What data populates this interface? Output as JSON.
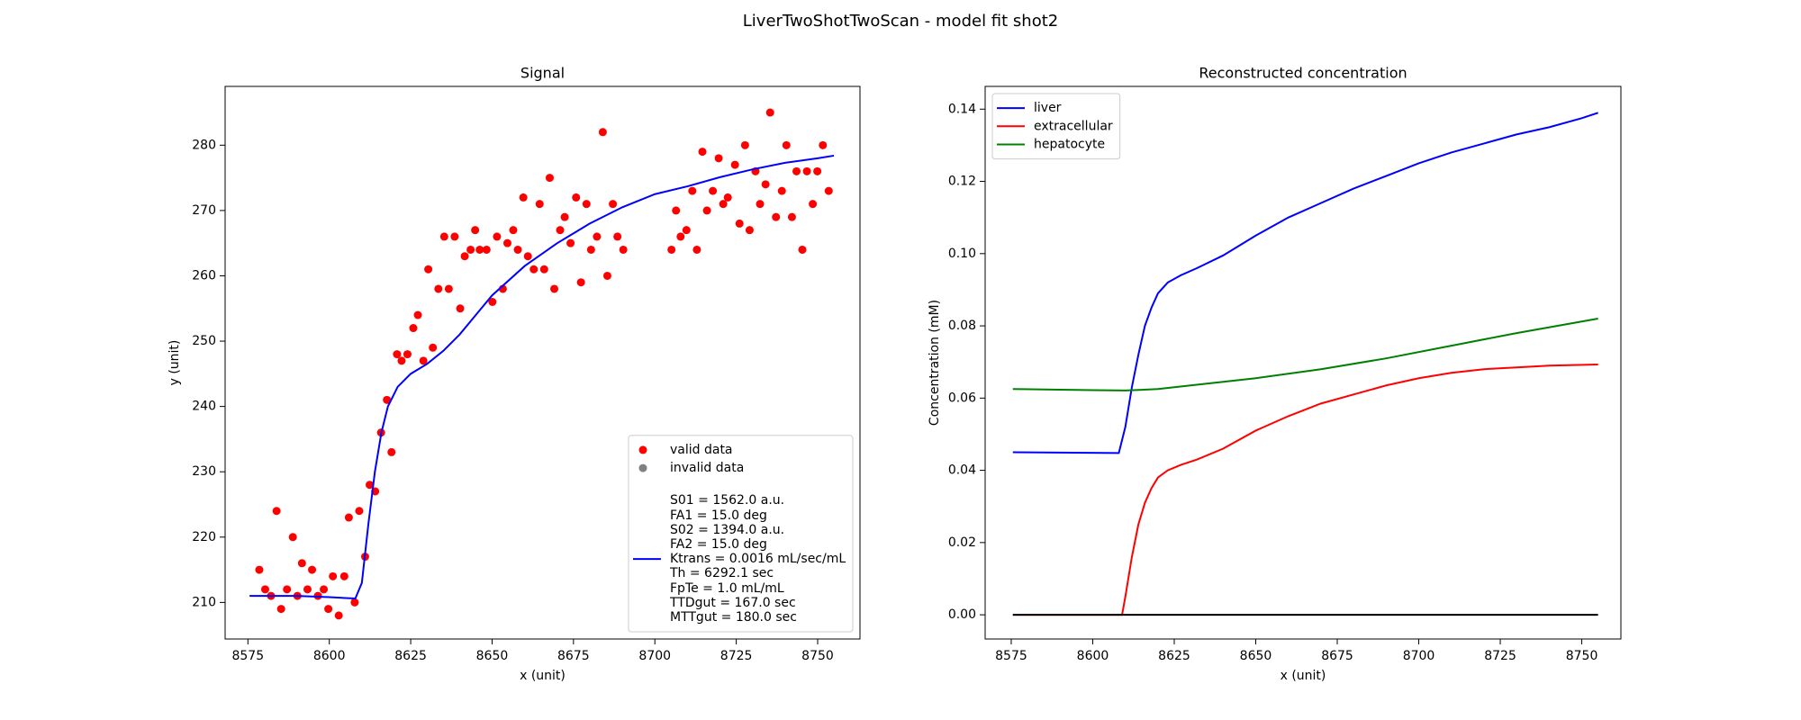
{
  "title": "LiverTwoShotTwoScan - model fit shot2",
  "chart_data": [
    {
      "type": "scatter",
      "title": "Signal",
      "xlabel": "x (unit)",
      "ylabel": "y (unit)",
      "xlim": [
        8568,
        8763
      ],
      "ylim": [
        204.4,
        289
      ],
      "xticks": [
        8575,
        8600,
        8625,
        8650,
        8675,
        8700,
        8725,
        8750
      ],
      "yticks": [
        210,
        220,
        230,
        240,
        250,
        260,
        270,
        280
      ],
      "legend": "lower right",
      "series": [
        {
          "name": "valid data",
          "type": "scatter",
          "color": "#ff0000",
          "x": [
            8578.5,
            8580.3,
            8582.1,
            8583.8,
            8585.2,
            8587.0,
            8588.8,
            8590.2,
            8591.6,
            8593.3,
            8594.7,
            8596.5,
            8598.3,
            8599.7,
            8601.1,
            8602.9,
            8604.6,
            8606.0,
            8607.8,
            8609.2,
            8611.0,
            8612.4,
            8614.1,
            8615.9,
            8617.7,
            8619.1,
            8620.8,
            8622.2,
            8624.0,
            8625.8,
            8627.2,
            8628.9,
            8630.4,
            8631.8,
            8633.5,
            8635.3,
            8636.7,
            8638.5,
            8640.2,
            8641.6,
            8643.4,
            8644.8,
            8646.2,
            8648.3,
            8650.1,
            8651.5,
            8653.3,
            8654.7,
            8656.5,
            8657.9,
            8659.6,
            8661.0,
            8662.8,
            8664.6,
            8666.0,
            8667.7,
            8669.1,
            8670.9,
            8672.3,
            8674.1,
            8675.8,
            8677.3,
            8679.0,
            8680.4,
            8682.2,
            8684.0,
            8685.4,
            8687.1,
            8688.5,
            8690.3,
            8705.1,
            8706.5,
            8707.9,
            8709.7,
            8711.5,
            8712.9,
            8714.6,
            8716.0,
            8717.8,
            8719.6,
            8721.0,
            8722.4,
            8724.6,
            8726.0,
            8727.7,
            8729.1,
            8730.9,
            8732.3,
            8734.0,
            8735.4,
            8737.2,
            8739.0,
            8740.4,
            8742.1,
            8743.5,
            8745.3,
            8746.7,
            8748.5,
            8749.9,
            8751.6,
            8753.4
          ],
          "values": [
            215,
            212,
            211,
            224,
            209,
            212,
            220,
            211,
            216,
            212,
            215,
            211,
            212,
            209,
            214,
            208,
            214,
            223,
            210,
            224,
            217,
            228,
            227,
            236,
            241,
            233,
            248,
            247,
            248,
            252,
            254,
            247,
            261,
            249,
            258,
            266,
            258,
            266,
            255,
            263,
            264,
            267,
            264,
            264,
            256,
            266,
            258,
            265,
            267,
            264,
            272,
            263,
            261,
            271,
            261,
            275,
            258,
            267,
            269,
            265,
            272,
            259,
            271,
            264,
            266,
            282,
            260,
            271,
            266,
            264,
            264,
            270,
            266,
            267,
            273,
            264,
            279,
            270,
            273,
            278,
            271,
            272,
            277,
            268,
            280,
            267,
            276,
            271,
            274,
            285,
            269,
            273,
            280,
            269,
            276,
            264,
            276,
            271,
            276,
            280,
            273
          ]
        },
        {
          "name": "invalid data",
          "type": "scatter",
          "color": "#808080",
          "x": [],
          "values": []
        },
        {
          "name": "S01 = 1562.0 a.u.\nFA1 = 15.0 deg\nS02 = 1394.0 a.u.\nFA2 = 15.0 deg\nKtrans = 0.0016 mL/sec/mL\nTh = 6292.1 sec\nFpTe = 1.0 mL/mL\nTTDgut = 167.0 sec\nMTTgut = 180.0 sec",
          "type": "line",
          "color": "#0000ff",
          "x": [
            8575.5,
            8590,
            8600,
            8608,
            8610,
            8612,
            8614,
            8616,
            8618,
            8621,
            8625,
            8630,
            8635,
            8640,
            8645,
            8650,
            8660,
            8670,
            8680,
            8690,
            8700,
            8710,
            8720,
            8730,
            8740,
            8750,
            8755
          ],
          "values": [
            211,
            211,
            210.8,
            210.6,
            213,
            222,
            230,
            236,
            240,
            243,
            245,
            246.5,
            248.5,
            251,
            254,
            257,
            261.5,
            265,
            268,
            270.5,
            272.5,
            273.7,
            275.1,
            276.3,
            277.3,
            278.0,
            278.4
          ]
        }
      ]
    },
    {
      "type": "line",
      "title": "Reconstructed concentration",
      "xlabel": "x (unit)",
      "ylabel": "Concentration (mM)",
      "xlim": [
        8567,
        8762
      ],
      "ylim": [
        -0.0067,
        0.1463
      ],
      "xticks": [
        8575,
        8600,
        8625,
        8650,
        8675,
        8700,
        8725,
        8750
      ],
      "yticks": [
        {
          "value": 0,
          "label": "0.00"
        },
        {
          "value": 0.02,
          "label": "0.02"
        },
        {
          "value": 0.04,
          "label": "0.04"
        },
        {
          "value": 0.06,
          "label": "0.06"
        },
        {
          "value": 0.08,
          "label": "0.08"
        },
        {
          "value": 0.1,
          "label": "0.10"
        },
        {
          "value": 0.12,
          "label": "0.12"
        },
        {
          "value": 0.14,
          "label": "0.14"
        }
      ],
      "legend": "upper left",
      "series": [
        {
          "name": "liver",
          "type": "line",
          "color": "#0000ff",
          "x": [
            8575.5,
            8608,
            8610,
            8612,
            8614,
            8616,
            8618,
            8620,
            8623,
            8627,
            8632,
            8640,
            8650,
            8660,
            8670,
            8680,
            8690,
            8700,
            8710,
            8720,
            8730,
            8740,
            8750,
            8755
          ],
          "values": [
            0.045,
            0.0448,
            0.052,
            0.063,
            0.072,
            0.08,
            0.085,
            0.089,
            0.092,
            0.094,
            0.096,
            0.0995,
            0.105,
            0.11,
            0.114,
            0.118,
            0.1215,
            0.125,
            0.128,
            0.1305,
            0.133,
            0.135,
            0.1375,
            0.139
          ]
        },
        {
          "name": "extracellular",
          "type": "line",
          "color": "#ff0000",
          "x": [
            8575.5,
            8609,
            8610,
            8612,
            8614,
            8616,
            8618,
            8620,
            8623,
            8627,
            8632,
            8640,
            8650,
            8660,
            8670,
            8680,
            8690,
            8700,
            8710,
            8720,
            8730,
            8740,
            8755
          ],
          "values": [
            0,
            0,
            0.005,
            0.016,
            0.025,
            0.031,
            0.035,
            0.038,
            0.04,
            0.0415,
            0.043,
            0.046,
            0.051,
            0.055,
            0.0585,
            0.061,
            0.0635,
            0.0655,
            0.067,
            0.068,
            0.0685,
            0.069,
            0.0693
          ]
        },
        {
          "name": "hepatocyte",
          "type": "line",
          "color": "#008000",
          "x": [
            8575.5,
            8600,
            8610,
            8620,
            8630,
            8650,
            8670,
            8690,
            8710,
            8730,
            8755
          ],
          "values": [
            0.0625,
            0.0622,
            0.0621,
            0.0625,
            0.0635,
            0.0655,
            0.068,
            0.071,
            0.0745,
            0.078,
            0.082
          ]
        },
        {
          "type": "line",
          "color": "#000000",
          "x": [
            8575.5,
            8755
          ],
          "values": [
            0,
            0
          ]
        }
      ]
    }
  ]
}
